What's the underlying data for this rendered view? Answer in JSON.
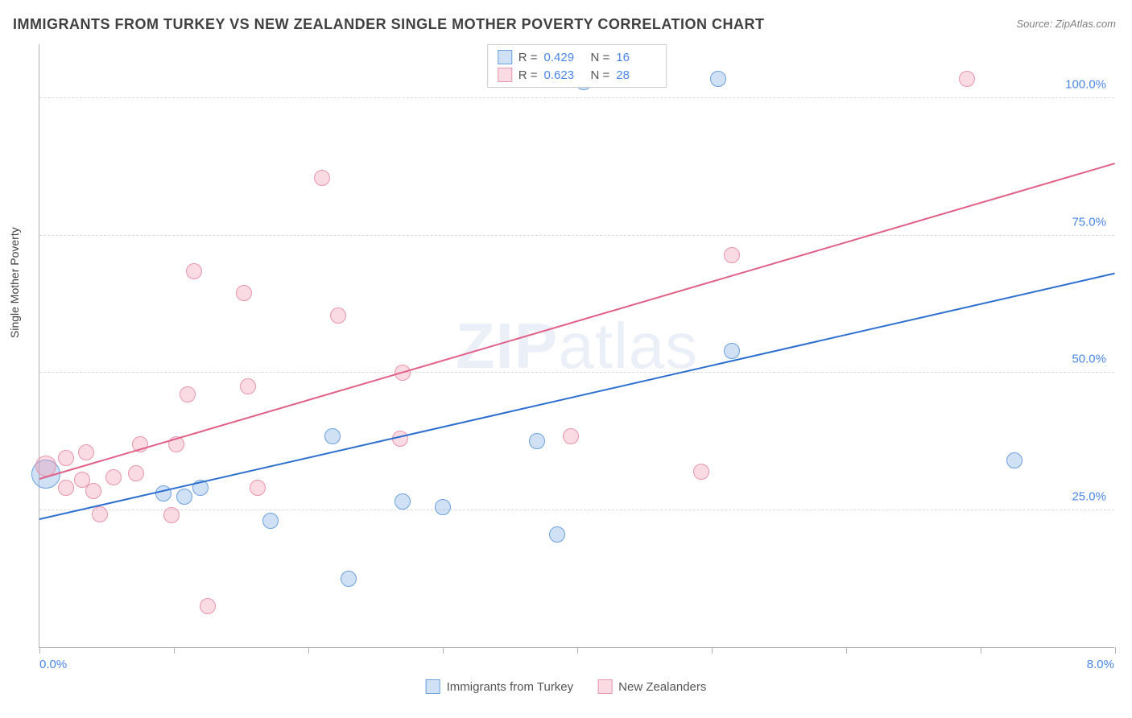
{
  "title": "IMMIGRANTS FROM TURKEY VS NEW ZEALANDER SINGLE MOTHER POVERTY CORRELATION CHART",
  "source_label": "Source: ZipAtlas.com",
  "y_axis_label": "Single Mother Poverty",
  "watermark": {
    "part1": "ZIP",
    "part2": "atlas"
  },
  "chart": {
    "type": "scatter",
    "xlim": [
      0,
      8.0
    ],
    "ylim": [
      0,
      110
    ],
    "x_tick_step": 1.0,
    "y_ticks": [
      25,
      50,
      75,
      100
    ],
    "y_tick_labels": [
      "25.0%",
      "50.0%",
      "75.0%",
      "100.0%"
    ],
    "x_start_label": "0.0%",
    "x_end_label": "8.0%",
    "background_color": "#ffffff",
    "grid_color": "#d8d8d8",
    "axis_color": "#b0b0b0",
    "series": [
      {
        "id": "turkey",
        "label": "Immigrants from Turkey",
        "fill_color": "rgba(120, 170, 230, 0.35)",
        "stroke_color": "#6aa0dd",
        "line_color": "#2d6fd0",
        "marker_radius": 10,
        "R": "0.429",
        "N": "16",
        "trend": {
          "x1": 0.0,
          "y1": 23.2,
          "x2": 8.0,
          "y2": 68.0
        },
        "points": [
          {
            "x": 0.05,
            "y": 31.5,
            "r": 18
          },
          {
            "x": 0.92,
            "y": 28.0
          },
          {
            "x": 1.08,
            "y": 27.5
          },
          {
            "x": 1.2,
            "y": 29.0
          },
          {
            "x": 1.72,
            "y": 23.0
          },
          {
            "x": 2.18,
            "y": 38.5
          },
          {
            "x": 2.3,
            "y": 12.5
          },
          {
            "x": 2.7,
            "y": 26.5
          },
          {
            "x": 3.0,
            "y": 25.5
          },
          {
            "x": 3.7,
            "y": 37.5
          },
          {
            "x": 3.85,
            "y": 20.5
          },
          {
            "x": 4.05,
            "y": 103.0
          },
          {
            "x": 5.05,
            "y": 103.5
          },
          {
            "x": 5.15,
            "y": 54.0
          },
          {
            "x": 7.25,
            "y": 34.0
          }
        ]
      },
      {
        "id": "nz",
        "label": "New Zealanders",
        "fill_color": "rgba(240, 150, 175, 0.35)",
        "stroke_color": "#e895ad",
        "line_color": "#e06088",
        "marker_radius": 10,
        "R": "0.623",
        "N": "28",
        "trend": {
          "x1": 0.0,
          "y1": 30.5,
          "x2": 8.0,
          "y2": 88.0
        },
        "points": [
          {
            "x": 0.05,
            "y": 33.0,
            "r": 13
          },
          {
            "x": 0.2,
            "y": 34.5
          },
          {
            "x": 0.2,
            "y": 29.0
          },
          {
            "x": 0.32,
            "y": 30.5
          },
          {
            "x": 0.35,
            "y": 35.5
          },
          {
            "x": 0.4,
            "y": 28.5
          },
          {
            "x": 0.45,
            "y": 24.2
          },
          {
            "x": 0.55,
            "y": 31.0
          },
          {
            "x": 0.72,
            "y": 31.7
          },
          {
            "x": 0.75,
            "y": 37.0
          },
          {
            "x": 0.98,
            "y": 24.0
          },
          {
            "x": 1.02,
            "y": 37.0
          },
          {
            "x": 1.1,
            "y": 46.0
          },
          {
            "x": 1.15,
            "y": 68.5
          },
          {
            "x": 1.25,
            "y": 7.5
          },
          {
            "x": 1.52,
            "y": 64.5
          },
          {
            "x": 1.55,
            "y": 47.5
          },
          {
            "x": 1.62,
            "y": 29.0
          },
          {
            "x": 2.1,
            "y": 85.5
          },
          {
            "x": 2.22,
            "y": 60.5
          },
          {
            "x": 2.68,
            "y": 38.0
          },
          {
            "x": 2.7,
            "y": 50.0
          },
          {
            "x": 3.95,
            "y": 38.5
          },
          {
            "x": 4.92,
            "y": 32.0
          },
          {
            "x": 5.15,
            "y": 71.5
          },
          {
            "x": 6.9,
            "y": 103.5
          }
        ]
      }
    ]
  },
  "top_legend": {
    "rows": [
      {
        "series": "turkey",
        "r_label": "R =",
        "n_label": "N ="
      },
      {
        "series": "nz",
        "r_label": "R =",
        "n_label": "N ="
      }
    ]
  }
}
